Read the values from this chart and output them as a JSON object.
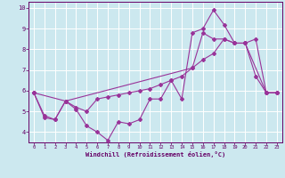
{
  "xlabel": "Windchill (Refroidissement éolien,°C)",
  "bg_color": "#cce8ef",
  "grid_color": "#ffffff",
  "line_color": "#993399",
  "xlim": [
    -0.5,
    23.5
  ],
  "ylim": [
    3.5,
    10.3
  ],
  "yticks": [
    4,
    5,
    6,
    7,
    8,
    9,
    10
  ],
  "xticks": [
    0,
    1,
    2,
    3,
    4,
    5,
    6,
    7,
    8,
    9,
    10,
    11,
    12,
    13,
    14,
    15,
    16,
    17,
    18,
    19,
    20,
    21,
    22,
    23
  ],
  "series1_x": [
    0,
    1,
    2,
    3,
    4,
    5,
    6,
    7,
    8,
    9,
    10,
    11,
    12,
    13,
    14,
    15,
    16,
    17,
    18,
    19,
    20,
    21,
    22,
    23
  ],
  "series1_y": [
    5.9,
    4.7,
    4.6,
    5.5,
    5.1,
    4.3,
    4.0,
    3.6,
    4.5,
    4.4,
    4.6,
    5.6,
    5.6,
    6.5,
    5.6,
    8.8,
    9.0,
    9.9,
    9.2,
    8.3,
    8.3,
    6.7,
    5.9,
    5.9
  ],
  "series2_x": [
    0,
    3,
    15,
    16,
    17,
    18,
    19,
    20,
    22,
    23
  ],
  "series2_y": [
    5.9,
    5.5,
    7.1,
    8.8,
    8.5,
    8.5,
    8.3,
    8.3,
    5.9,
    5.9
  ],
  "series3_x": [
    0,
    1,
    2,
    3,
    4,
    5,
    6,
    7,
    8,
    9,
    10,
    11,
    12,
    13,
    14,
    15,
    16,
    17,
    18,
    19,
    20,
    21,
    22,
    23
  ],
  "series3_y": [
    5.9,
    4.8,
    4.6,
    5.5,
    5.2,
    5.0,
    5.6,
    5.7,
    5.8,
    5.9,
    6.0,
    6.1,
    6.3,
    6.5,
    6.7,
    7.1,
    7.5,
    7.8,
    8.5,
    8.3,
    8.3,
    8.5,
    5.9,
    5.9
  ]
}
